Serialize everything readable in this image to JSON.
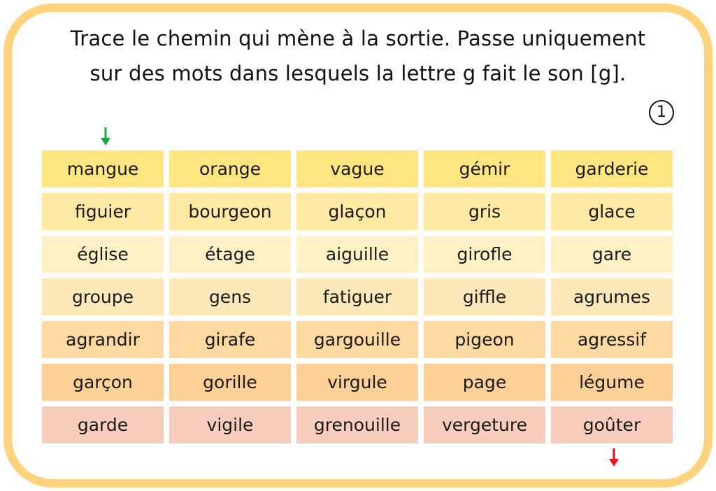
{
  "instructions": {
    "line1": "Trace le chemin qui mène à la sortie. Passe uniquement",
    "line2": "sur des mots dans lesquels la lettre g fait le son [g]."
  },
  "exercise_number": "1",
  "icons": {
    "start": "arrow-down-green",
    "exit": "arrow-down-red"
  },
  "colors": {
    "frame": "#ffd37e",
    "start_arrow": "#1aa83c",
    "exit_arrow": "#e8141b",
    "row_backgrounds": [
      "#ffe680",
      "#ffe9a3",
      "#fff1c5",
      "#fde8b9",
      "#fcd9a1",
      "#fcd096",
      "#f8cdbd"
    ]
  },
  "grid": {
    "rows": [
      [
        "mangue",
        "orange",
        "vague",
        "gémir",
        "garderie"
      ],
      [
        "figuier",
        "bourgeon",
        "glaçon",
        "gris",
        "glace"
      ],
      [
        "église",
        "étage",
        "aiguille",
        "girofle",
        "gare"
      ],
      [
        "groupe",
        "gens",
        "fatiguer",
        "giffle",
        "agrumes"
      ],
      [
        "agrandir",
        "girafe",
        "gargouille",
        "pigeon",
        "agressif"
      ],
      [
        "garçon",
        "gorille",
        "virgule",
        "page",
        "légume"
      ],
      [
        "garde",
        "vigile",
        "grenouille",
        "vergeture",
        "goûter"
      ]
    ]
  }
}
